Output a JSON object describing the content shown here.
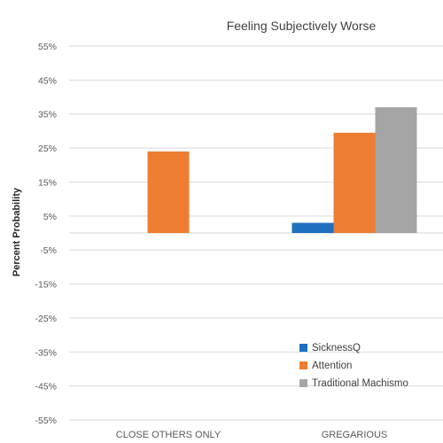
{
  "chart_data": {
    "type": "bar",
    "title": "Feeling Subjectively Worse",
    "ylabel": "Percent Probability",
    "xlabel": "",
    "ylim": [
      -55,
      55
    ],
    "yticks": [
      55,
      45,
      35,
      25,
      15,
      5,
      -5,
      -15,
      -25,
      -35,
      -45,
      -55
    ],
    "ytick_labels": [
      "55%",
      "45%",
      "35%",
      "25%",
      "15%",
      "5%",
      "-5%",
      "-15%",
      "-25%",
      "-35%",
      "-45%",
      "-55%"
    ],
    "categories": [
      "CLOSE OTHERS ONLY",
      "GREGARIOUS"
    ],
    "series": [
      {
        "name": "SicknessQ",
        "color": "#1f6fbf",
        "values": [
          null,
          3
        ]
      },
      {
        "name": "Attention",
        "color": "#ed7d31",
        "values": [
          24,
          29.5
        ]
      },
      {
        "name": "Traditional Machismo",
        "color": "#a5a5a5",
        "values": [
          null,
          37
        ]
      }
    ],
    "grid": true,
    "legend_position": "bottom-right"
  }
}
